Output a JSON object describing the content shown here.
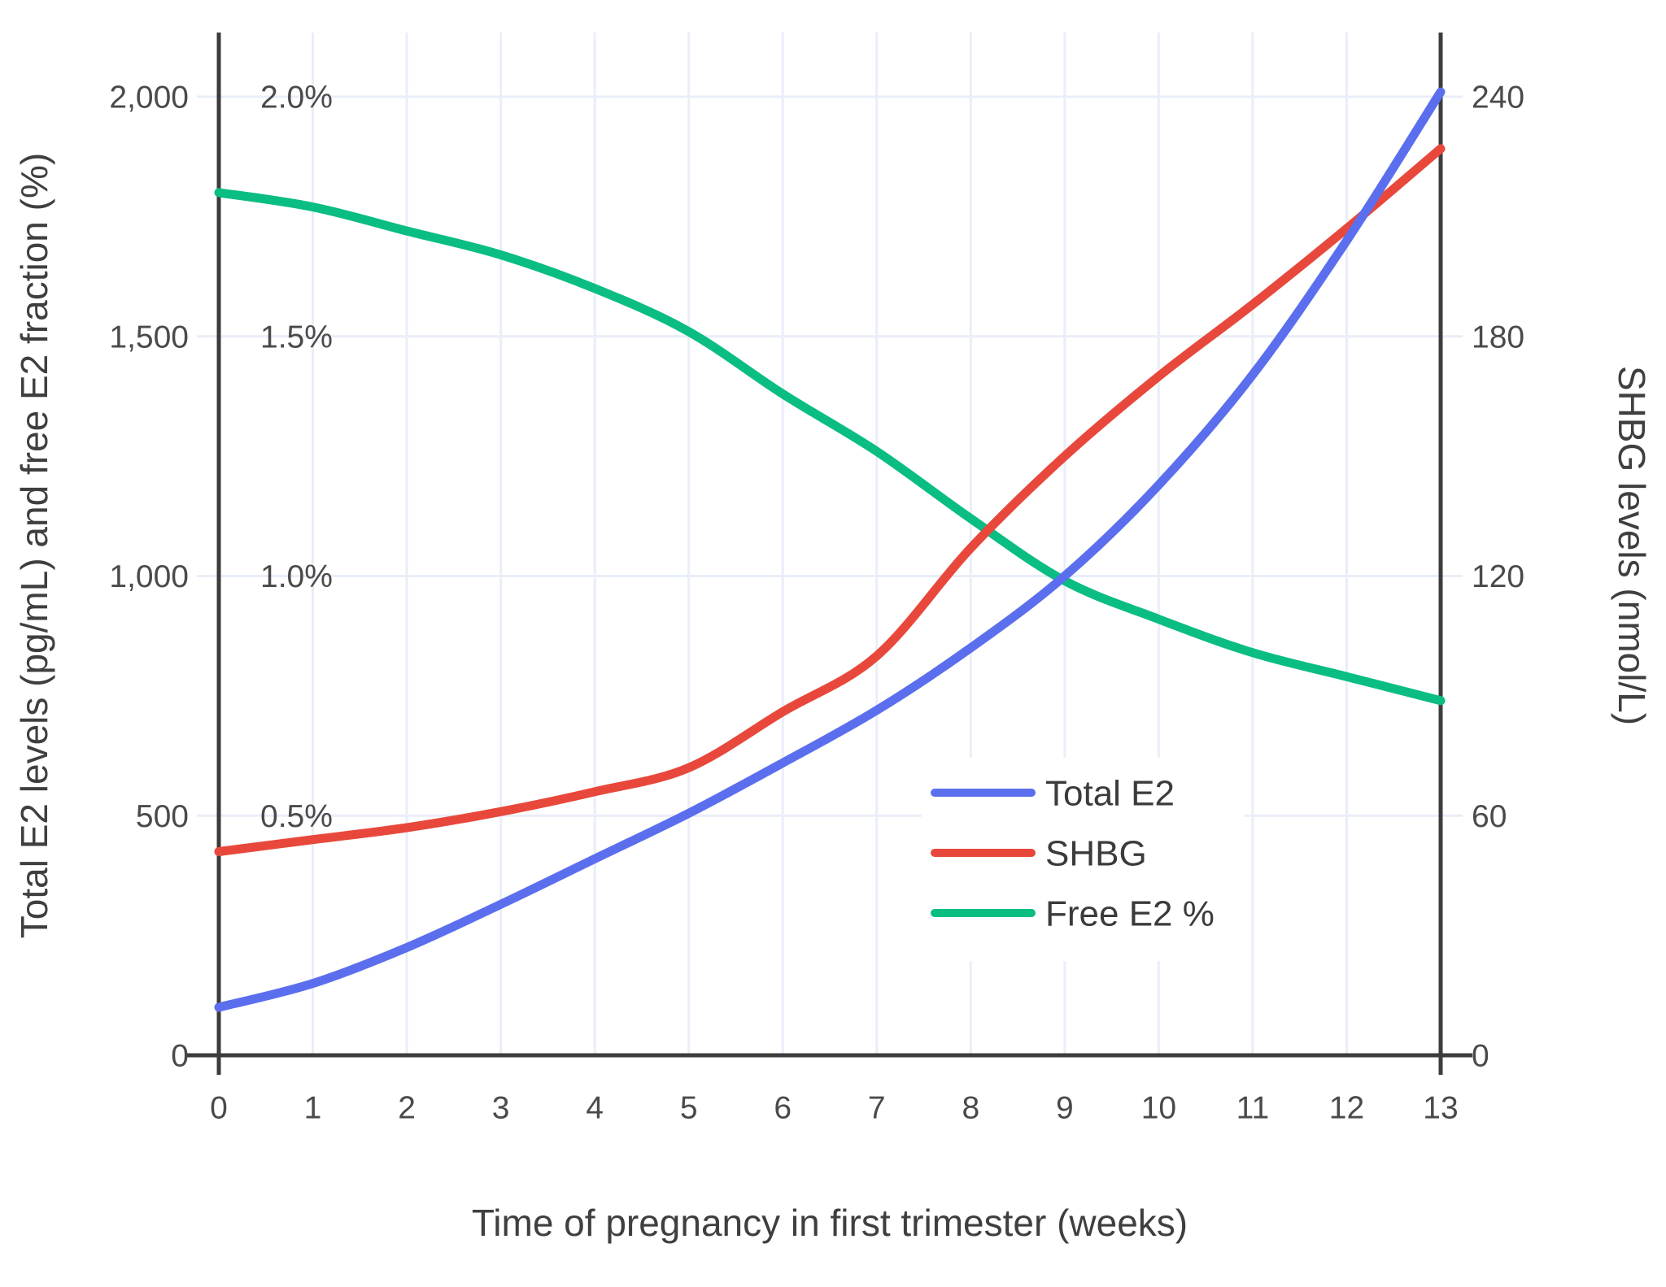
{
  "chart_data": {
    "type": "line",
    "title": "",
    "xlabel": "Time of pregnancy in first trimester (weeks)",
    "ylabel_left": "Total E2 levels (pg/mL) and free E2 fraction (%)",
    "ylabel_right": "SHBG levels (nmol/L)",
    "x_range": [
      0,
      13
    ],
    "weeks": [
      0,
      1,
      2,
      3,
      4,
      5,
      6,
      7,
      8,
      9,
      10,
      11,
      12,
      13
    ],
    "x_ticks": [
      {
        "v": 0,
        "label": "0"
      },
      {
        "v": 1,
        "label": "1"
      },
      {
        "v": 2,
        "label": "2"
      },
      {
        "v": 3,
        "label": "3"
      },
      {
        "v": 4,
        "label": "4"
      },
      {
        "v": 5,
        "label": "5"
      },
      {
        "v": 6,
        "label": "6"
      },
      {
        "v": 7,
        "label": "7"
      },
      {
        "v": 8,
        "label": "8"
      },
      {
        "v": 9,
        "label": "9"
      },
      {
        "v": 10,
        "label": "10"
      },
      {
        "v": 11,
        "label": "11"
      },
      {
        "v": 12,
        "label": "12"
      },
      {
        "v": 13,
        "label": "13"
      }
    ],
    "y_left": {
      "range": [
        0,
        2000
      ],
      "ticks": [
        {
          "v": 0,
          "label": "0"
        },
        {
          "v": 500,
          "label": "500"
        },
        {
          "v": 1000,
          "label": "1,000"
        },
        {
          "v": 1500,
          "label": "1,500"
        },
        {
          "v": 2000,
          "label": "2,000"
        }
      ]
    },
    "y_left_pct": {
      "range": [
        0,
        2.0
      ],
      "inner_labels": [
        {
          "v": 0.5,
          "label": "0.5%"
        },
        {
          "v": 1.0,
          "label": "1.0%"
        },
        {
          "v": 1.5,
          "label": "1.5%"
        },
        {
          "v": 2.0,
          "label": "2.0%"
        }
      ]
    },
    "y_right": {
      "range": [
        0,
        240
      ],
      "ticks": [
        {
          "v": 0,
          "label": "0"
        },
        {
          "v": 60,
          "label": "60"
        },
        {
          "v": 120,
          "label": "120"
        },
        {
          "v": 180,
          "label": "180"
        },
        {
          "v": 240,
          "label": "240"
        }
      ]
    },
    "series": [
      {
        "name": "Total E2",
        "axis": "left",
        "unit": "pg/mL",
        "color": "#5B6FEE",
        "values": [
          100,
          150,
          225,
          315,
          410,
          505,
          610,
          720,
          850,
          1000,
          1190,
          1420,
          1700,
          2010
        ]
      },
      {
        "name": "SHBG",
        "axis": "right",
        "unit": "nmol/L",
        "color": "#E8483B",
        "values": [
          51,
          54,
          57,
          61,
          66,
          72,
          86,
          100,
          127,
          150,
          170,
          188,
          207,
          227
        ]
      },
      {
        "name": "Free E2 %",
        "axis": "left_pct",
        "unit": "%",
        "color": "#0ABD83",
        "values": [
          1.8,
          1.77,
          1.72,
          1.67,
          1.6,
          1.51,
          1.38,
          1.26,
          1.12,
          0.99,
          0.91,
          0.84,
          0.79,
          0.74
        ]
      }
    ],
    "legend": {
      "position": "inside-bottom-right"
    },
    "grid": true
  },
  "colors": {
    "grid": "#E9EEF8",
    "axis": "#3C3C3C",
    "tick_text": "#4A4A4A",
    "title_text": "#3F3F3F",
    "legend_bg": "#FFFFFF"
  }
}
